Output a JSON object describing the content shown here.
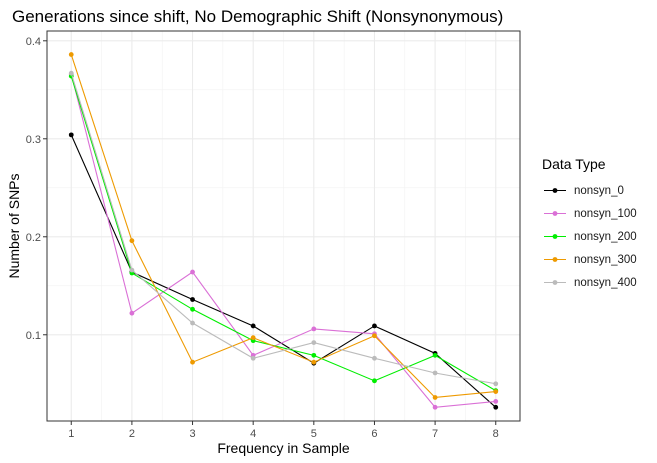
{
  "chart_data": {
    "type": "line",
    "title": "Generations since shift, No Demographic Shift (Nonsynonymous)",
    "xlabel": "Frequency in Sample",
    "ylabel": "Number of SNPs",
    "x": [
      1,
      2,
      3,
      4,
      5,
      6,
      7,
      8
    ],
    "xlim": [
      0.6,
      8.4
    ],
    "ylim": [
      0.012,
      0.41
    ],
    "xticks": [
      "1",
      "2",
      "3",
      "4",
      "5",
      "6",
      "7",
      "8"
    ],
    "yticks": [
      0.1,
      0.2,
      0.3,
      0.4
    ],
    "ytick_labels": [
      "0.1",
      "0.2",
      "0.3",
      "0.4"
    ],
    "grid": true,
    "legend_title": "Data Type",
    "legend_position": "right",
    "series": [
      {
        "name": "nonsyn_0",
        "color": "#000000",
        "values": [
          0.304,
          0.164,
          0.136,
          0.109,
          0.071,
          0.109,
          0.081,
          0.026
        ]
      },
      {
        "name": "nonsyn_100",
        "color": "#DA70D6",
        "values": [
          0.366,
          0.122,
          0.164,
          0.079,
          0.106,
          0.101,
          0.026,
          0.032
        ]
      },
      {
        "name": "nonsyn_200",
        "color": "#00EE00",
        "values": [
          0.364,
          0.163,
          0.126,
          0.094,
          0.079,
          0.053,
          0.079,
          0.043
        ]
      },
      {
        "name": "nonsyn_300",
        "color": "#EE9A00",
        "values": [
          0.386,
          0.196,
          0.072,
          0.097,
          0.072,
          0.099,
          0.036,
          0.042
        ]
      },
      {
        "name": "nonsyn_400",
        "color": "#BBBBBB",
        "values": [
          0.367,
          0.166,
          0.112,
          0.076,
          0.092,
          0.076,
          0.061,
          0.05
        ]
      }
    ]
  }
}
